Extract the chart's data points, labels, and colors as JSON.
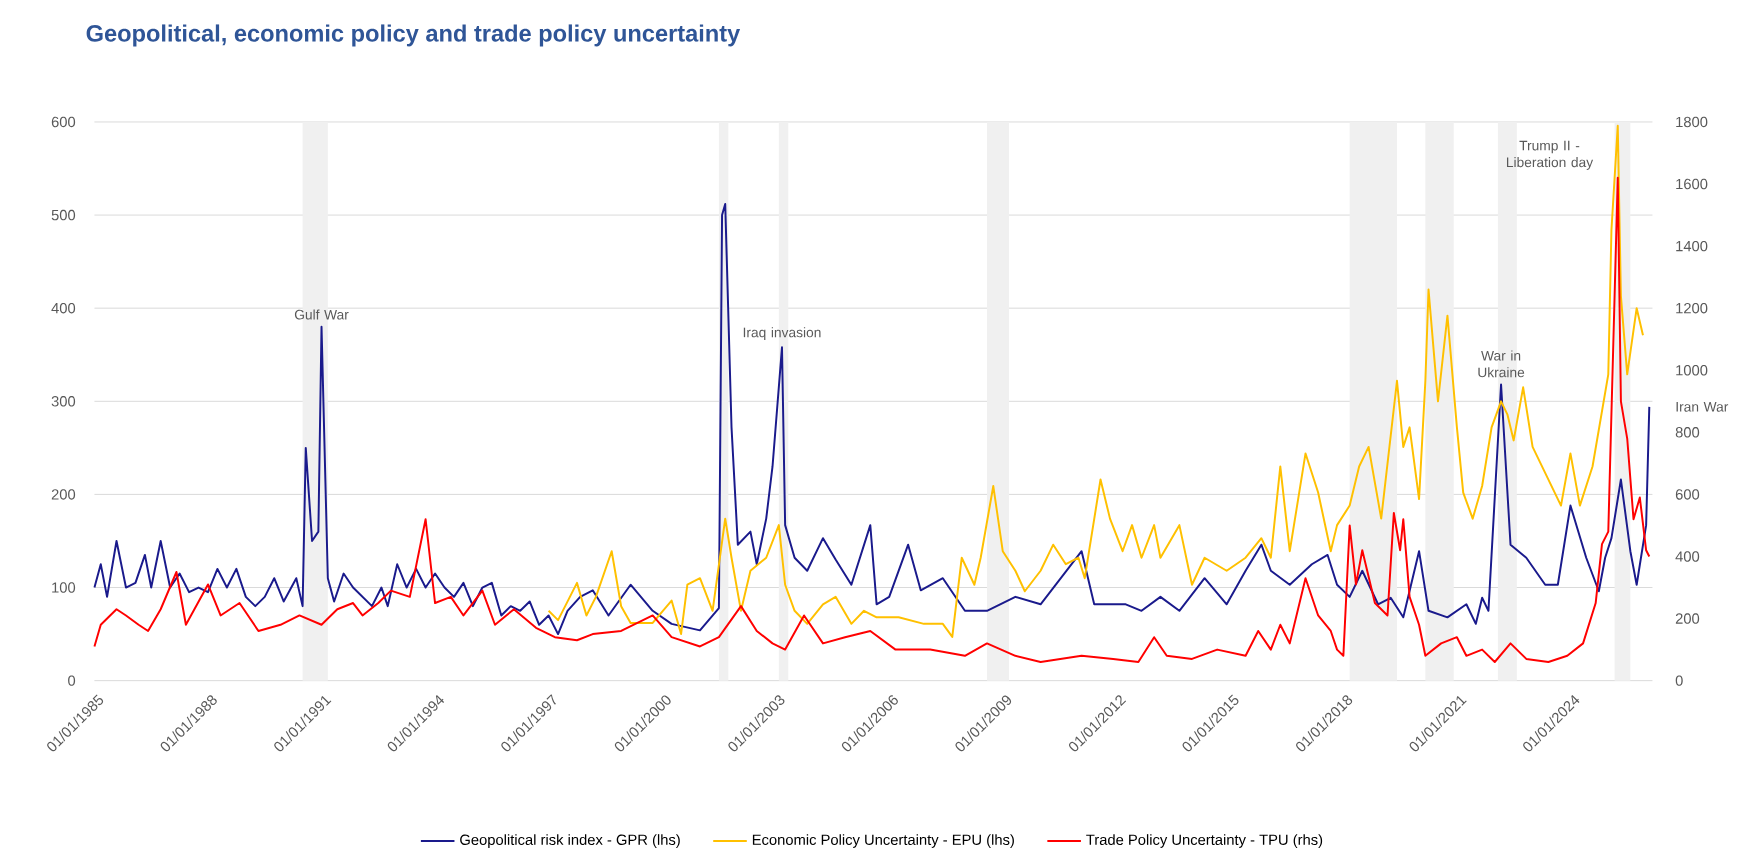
{
  "chart_data": {
    "type": "line",
    "title": "Geopolitical, economic policy and trade policy uncertainty",
    "xlim": [
      "1985-01-01",
      "2026-03-01"
    ],
    "xticks": [
      {
        "value": "1985-01-01",
        "label": "01/01/1985"
      },
      {
        "value": "1988-01-01",
        "label": "01/01/1988"
      },
      {
        "value": "1991-01-01",
        "label": "01/01/1991"
      },
      {
        "value": "1994-01-01",
        "label": "01/01/1994"
      },
      {
        "value": "1997-01-01",
        "label": "01/01/1997"
      },
      {
        "value": "2000-01-01",
        "label": "01/01/2000"
      },
      {
        "value": "2003-01-01",
        "label": "01/01/2003"
      },
      {
        "value": "2006-01-01",
        "label": "01/01/2006"
      },
      {
        "value": "2009-01-01",
        "label": "01/01/2009"
      },
      {
        "value": "2012-01-01",
        "label": "01/01/2012"
      },
      {
        "value": "2015-01-01",
        "label": "01/01/2015"
      },
      {
        "value": "2018-01-01",
        "label": "01/01/2018"
      },
      {
        "value": "2021-01-01",
        "label": "01/01/2021"
      },
      {
        "value": "2024-01-01",
        "label": "01/01/2024"
      }
    ],
    "ylim": [
      0,
      600
    ],
    "yticks": [
      0,
      100,
      200,
      300,
      400,
      500,
      600
    ],
    "y2lim": [
      0,
      1800
    ],
    "y2ticks": [
      0,
      200,
      400,
      600,
      800,
      1000,
      1200,
      1400,
      1600,
      1800
    ],
    "grid": "y",
    "legend": "bottom",
    "bands": [
      {
        "axis": "x",
        "from": "1990-07",
        "to": "1991-03",
        "color": "#f0f0f0"
      },
      {
        "axis": "x",
        "from": "2001-07",
        "to": "2001-10",
        "color": "#f0f0f0"
      },
      {
        "axis": "x",
        "from": "2003-02",
        "to": "2003-05",
        "color": "#f0f0f0"
      },
      {
        "axis": "x",
        "from": "2008-08",
        "to": "2009-03",
        "color": "#f0f0f0"
      },
      {
        "axis": "x",
        "from": "2018-03",
        "to": "2019-06",
        "color": "#f0f0f0"
      },
      {
        "axis": "x",
        "from": "2020-03",
        "to": "2020-12",
        "color": "#f0f0f0"
      },
      {
        "axis": "x",
        "from": "2022-02",
        "to": "2022-08",
        "color": "#f0f0f0"
      },
      {
        "axis": "x",
        "from": "2025-03",
        "to": "2025-08",
        "color": "#f0f0f0"
      }
    ],
    "annotations": [
      {
        "text": "Gulf War",
        "x": "1991-01",
        "y": 380
      },
      {
        "text": "Iraq invasion",
        "x": "2003-03",
        "y": 358
      },
      {
        "text": "War in Ukraine",
        "x": "2022-03",
        "y": 318
      },
      {
        "text": "Trump II - Liberation day",
        "x": "2025-04",
        "y": 596
      },
      {
        "text": "Iran War",
        "x": "2026-02",
        "y": 294
      }
    ],
    "series": [
      {
        "name": "Geopolitical risk index - GPR (lhs)",
        "color": "#1a1a8c",
        "x": [
          "1985-01",
          "1985-03",
          "1985-05",
          "1985-08",
          "1985-11",
          "1986-02",
          "1986-05",
          "1986-07",
          "1986-10",
          "1987-01",
          "1987-04",
          "1987-07",
          "1987-10",
          "1988-01",
          "1988-04",
          "1988-07",
          "1988-10",
          "1989-01",
          "1989-04",
          "1989-07",
          "1989-10",
          "1990-01",
          "1990-05",
          "1990-07",
          "1990-08",
          "1990-10",
          "1990-12",
          "1991-01",
          "1991-03",
          "1991-05",
          "1991-08",
          "1991-11",
          "1992-02",
          "1992-05",
          "1992-08",
          "1992-10",
          "1993-01",
          "1993-04",
          "1993-07",
          "1993-10",
          "1994-01",
          "1994-04",
          "1994-07",
          "1994-10",
          "1995-01",
          "1995-04",
          "1995-07",
          "1995-10",
          "1996-01",
          "1996-04",
          "1996-07",
          "1996-10",
          "1997-01",
          "1997-04",
          "1997-07",
          "1997-11",
          "1998-03",
          "1998-08",
          "1999-03",
          "1999-10",
          "2000-04",
          "2001-01",
          "2001-07",
          "2001-08",
          "2001-09",
          "2001-11",
          "2002-01",
          "2002-05",
          "2002-07",
          "2002-10",
          "2002-12",
          "2003-03",
          "2003-04",
          "2003-07",
          "2003-11",
          "2004-04",
          "2004-08",
          "2005-01",
          "2005-07",
          "2005-09",
          "2006-01",
          "2006-07",
          "2006-11",
          "2007-06",
          "2008-01",
          "2008-08",
          "2009-05",
          "2010-01",
          "2011-02",
          "2011-06",
          "2012-04",
          "2012-09",
          "2013-03",
          "2013-09",
          "2014-05",
          "2014-12",
          "2015-06",
          "2015-11",
          "2016-02",
          "2016-08",
          "2017-03",
          "2017-08",
          "2017-11",
          "2018-03",
          "2018-07",
          "2018-12",
          "2019-04",
          "2019-08",
          "2020-01",
          "2020-04",
          "2020-10",
          "2021-04",
          "2021-07",
          "2021-09",
          "2021-11",
          "2022-03",
          "2022-06",
          "2022-11",
          "2023-05",
          "2023-09",
          "2024-01",
          "2024-06",
          "2024-10",
          "2024-12",
          "2025-02",
          "2025-05",
          "2025-08",
          "2025-10",
          "2026-01",
          "2026-02"
        ],
        "values": [
          100,
          125,
          90,
          150,
          100,
          105,
          135,
          100,
          150,
          100,
          115,
          95,
          100,
          95,
          120,
          100,
          120,
          90,
          80,
          90,
          110,
          85,
          110,
          80,
          250,
          150,
          160,
          380,
          110,
          85,
          115,
          100,
          90,
          80,
          100,
          80,
          125,
          100,
          120,
          100,
          115,
          100,
          90,
          105,
          80,
          100,
          105,
          70,
          80,
          75,
          85,
          60,
          70,
          50,
          75,
          90,
          97,
          70,
          103,
          75,
          61,
          54,
          78,
          500,
          512,
          272,
          146,
          160,
          125,
          174,
          230,
          358,
          167,
          132,
          118,
          153,
          130,
          103,
          167,
          82,
          90,
          146,
          97,
          110,
          75,
          75,
          90,
          82,
          139,
          82,
          82,
          75,
          90,
          75,
          110,
          82,
          118,
          146,
          118,
          103,
          125,
          135,
          103,
          90,
          118,
          82,
          89,
          68,
          139,
          75,
          68,
          82,
          61,
          89,
          75,
          318,
          146,
          132,
          103,
          103,
          188,
          132,
          96,
          132,
          153,
          216,
          139,
          103,
          167,
          294
        ]
      },
      {
        "name": "Economic Policy Uncertainty - EPU (lhs)",
        "color": "#ffc000",
        "x": [
          "1997-01",
          "1997-04",
          "1997-10",
          "1998-01",
          "1998-04",
          "1998-09",
          "1998-12",
          "1999-03",
          "1999-10",
          "2000-04",
          "2000-07",
          "2000-09",
          "2001-01",
          "2001-05",
          "2001-09",
          "2001-11",
          "2002-02",
          "2002-05",
          "2002-10",
          "2003-02",
          "2003-04",
          "2003-07",
          "2003-11",
          "2004-04",
          "2004-08",
          "2005-01",
          "2005-05",
          "2005-09",
          "2006-04",
          "2006-12",
          "2007-06",
          "2007-09",
          "2007-12",
          "2008-04",
          "2008-06",
          "2008-10",
          "2009-01",
          "2009-05",
          "2009-08",
          "2010-01",
          "2010-05",
          "2010-09",
          "2011-01",
          "2011-03",
          "2011-08",
          "2011-11",
          "2012-03",
          "2012-06",
          "2012-09",
          "2013-01",
          "2013-03",
          "2013-09",
          "2014-01",
          "2014-05",
          "2014-12",
          "2015-06",
          "2015-11",
          "2016-02",
          "2016-05",
          "2016-08",
          "2017-01",
          "2017-05",
          "2017-09",
          "2017-11",
          "2018-03",
          "2018-06",
          "2018-09",
          "2019-01",
          "2019-06",
          "2019-08",
          "2019-10",
          "2020-01",
          "2020-03",
          "2020-04",
          "2020-07",
          "2020-10",
          "2021-01",
          "2021-03",
          "2021-06",
          "2021-09",
          "2021-12",
          "2022-03",
          "2022-05",
          "2022-07",
          "2022-10",
          "2023-01",
          "2023-06",
          "2023-10",
          "2024-01",
          "2024-04",
          "2024-08",
          "2025-01",
          "2025-02",
          "2025-04",
          "2025-05",
          "2025-07",
          "2025-10",
          "2025-12"
        ],
        "values": [
          75,
          65,
          105,
          70,
          90,
          139,
          80,
          62,
          62,
          86,
          50,
          103,
          110,
          75,
          174,
          132,
          75,
          118,
          132,
          167,
          103,
          75,
          61,
          82,
          90,
          61,
          75,
          68,
          68,
          61,
          61,
          47,
          132,
          103,
          132,
          209,
          139,
          118,
          96,
          118,
          146,
          125,
          132,
          110,
          216,
          174,
          139,
          167,
          132,
          167,
          132,
          167,
          103,
          132,
          118,
          132,
          153,
          132,
          230,
          139,
          244,
          202,
          139,
          167,
          188,
          230,
          251,
          174,
          322,
          251,
          272,
          195,
          322,
          420,
          300,
          392,
          272,
          202,
          174,
          209,
          272,
          300,
          286,
          258,
          315,
          251,
          216,
          188,
          244,
          188,
          230,
          329,
          484,
          596,
          413,
          329,
          400,
          371
        ]
      },
      {
        "name": "Trade Policy Uncertainty - TPU (rhs)",
        "color": "#ff0000",
        "axis": "y2",
        "x": [
          "1985-01",
          "1985-03",
          "1985-08",
          "1985-11",
          "1986-03",
          "1986-06",
          "1986-10",
          "1987-03",
          "1987-06",
          "1988-01",
          "1988-05",
          "1988-11",
          "1989-05",
          "1989-12",
          "1990-06",
          "1991-01",
          "1991-06",
          "1991-11",
          "1992-02",
          "1992-07",
          "1992-11",
          "1993-05",
          "1993-10",
          "1994-01",
          "1994-06",
          "1994-10",
          "1995-04",
          "1995-08",
          "1996-02",
          "1996-09",
          "1997-03",
          "1997-10",
          "1998-03",
          "1998-12",
          "1999-10",
          "2000-04",
          "2001-01",
          "2001-07",
          "2002-02",
          "2002-07",
          "2002-12",
          "2003-04",
          "2003-10",
          "2004-04",
          "2004-11",
          "2005-07",
          "2006-03",
          "2007-02",
          "2008-01",
          "2008-08",
          "2009-05",
          "2010-01",
          "2011-02",
          "2011-12",
          "2012-08",
          "2013-01",
          "2013-05",
          "2014-01",
          "2014-09",
          "2015-06",
          "2015-10",
          "2016-02",
          "2016-05",
          "2016-08",
          "2017-01",
          "2017-05",
          "2017-09",
          "2017-11",
          "2018-01",
          "2018-03",
          "2018-05",
          "2018-07",
          "2018-11",
          "2019-03",
          "2019-05",
          "2019-07",
          "2019-08",
          "2019-10",
          "2020-01",
          "2020-03",
          "2020-08",
          "2021-01",
          "2021-04",
          "2021-09",
          "2022-01",
          "2022-06",
          "2022-11",
          "2023-06",
          "2023-12",
          "2024-05",
          "2024-09",
          "2024-11",
          "2025-01",
          "2025-04",
          "2025-05",
          "2025-07",
          "2025-09",
          "2025-11",
          "2026-01",
          "2026-02"
        ],
        "values": [
          110,
          180,
          230,
          210,
          180,
          160,
          230,
          350,
          180,
          310,
          210,
          250,
          160,
          180,
          210,
          180,
          230,
          250,
          210,
          250,
          290,
          270,
          520,
          250,
          270,
          210,
          290,
          180,
          230,
          170,
          140,
          130,
          150,
          160,
          210,
          140,
          110,
          140,
          240,
          160,
          120,
          100,
          210,
          120,
          140,
          160,
          100,
          100,
          80,
          120,
          80,
          60,
          80,
          70,
          60,
          140,
          80,
          70,
          100,
          80,
          160,
          100,
          180,
          120,
          330,
          210,
          160,
          100,
          80,
          500,
          310,
          420,
          250,
          210,
          540,
          420,
          520,
          270,
          180,
          80,
          120,
          140,
          80,
          100,
          60,
          120,
          70,
          60,
          80,
          120,
          250,
          440,
          480,
          1620,
          900,
          780,
          520,
          590,
          420,
          400
        ]
      }
    ]
  }
}
